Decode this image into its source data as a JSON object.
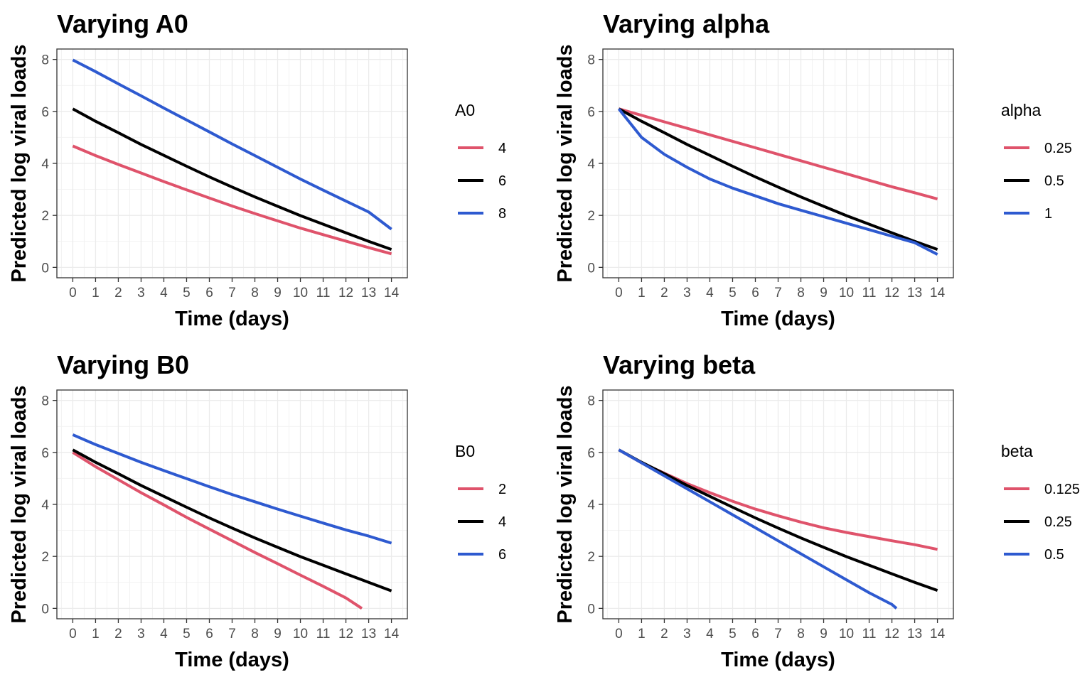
{
  "chart_data": [
    {
      "type": "line",
      "title": "Varying A0",
      "xlabel": "Time (days)",
      "ylabel": "Predicted log viral loads",
      "xlim": [
        0,
        14
      ],
      "ylim": [
        0,
        8
      ],
      "xticks": [
        "0",
        "1",
        "2",
        "3",
        "4",
        "5",
        "6",
        "7",
        "8",
        "9",
        "10",
        "11",
        "12",
        "13",
        "14"
      ],
      "yticks": [
        "0",
        "2",
        "4",
        "6",
        "8"
      ],
      "grid": true,
      "legend": {
        "title": "A0",
        "placement": "right"
      },
      "x": [
        0,
        1,
        2,
        3,
        4,
        5,
        6,
        7,
        8,
        9,
        10,
        11,
        12,
        13,
        14
      ],
      "series": [
        {
          "name": "4",
          "color": "#DF536B",
          "values": [
            4.67,
            4.3,
            3.96,
            3.63,
            3.3,
            2.98,
            2.67,
            2.36,
            2.07,
            1.79,
            1.51,
            1.26,
            1.01,
            0.76,
            0.52
          ]
        },
        {
          "name": "6",
          "color": "#000000",
          "values": [
            6.1,
            5.62,
            5.18,
            4.73,
            4.31,
            3.89,
            3.48,
            3.09,
            2.71,
            2.35,
            1.99,
            1.66,
            1.33,
            1.0,
            0.69
          ]
        },
        {
          "name": "8",
          "color": "#2E5AD0",
          "values": [
            7.98,
            7.53,
            7.06,
            6.6,
            6.13,
            5.67,
            5.21,
            4.75,
            4.3,
            3.85,
            3.4,
            2.97,
            2.55,
            2.13,
            1.47
          ]
        }
      ]
    },
    {
      "type": "line",
      "title": "Varying alpha",
      "xlabel": "Time (days)",
      "ylabel": "Predicted log viral loads",
      "xlim": [
        0,
        14
      ],
      "ylim": [
        0,
        8
      ],
      "xticks": [
        "0",
        "1",
        "2",
        "3",
        "4",
        "5",
        "6",
        "7",
        "8",
        "9",
        "10",
        "11",
        "12",
        "13",
        "14"
      ],
      "yticks": [
        "0",
        "2",
        "4",
        "6",
        "8"
      ],
      "grid": true,
      "legend": {
        "title": "alpha",
        "placement": "right"
      },
      "x": [
        0,
        1,
        2,
        3,
        4,
        5,
        6,
        7,
        8,
        9,
        10,
        11,
        12,
        13,
        14
      ],
      "series": [
        {
          "name": "0.25",
          "color": "#DF536B",
          "values": [
            6.1,
            5.85,
            5.6,
            5.35,
            5.1,
            4.85,
            4.6,
            4.35,
            4.1,
            3.85,
            3.6,
            3.35,
            3.1,
            2.87,
            2.63
          ]
        },
        {
          "name": "0.5",
          "color": "#000000",
          "values": [
            6.1,
            5.62,
            5.18,
            4.73,
            4.31,
            3.89,
            3.48,
            3.09,
            2.71,
            2.35,
            1.99,
            1.66,
            1.33,
            1.0,
            0.69
          ]
        },
        {
          "name": "1",
          "color": "#2E5AD0",
          "values": [
            6.1,
            5.0,
            4.35,
            3.85,
            3.4,
            3.05,
            2.75,
            2.45,
            2.2,
            1.95,
            1.7,
            1.45,
            1.2,
            0.95,
            0.5
          ]
        }
      ]
    },
    {
      "type": "line",
      "title": "Varying B0",
      "xlabel": "Time (days)",
      "ylabel": "Predicted log viral loads",
      "xlim": [
        0,
        14
      ],
      "ylim": [
        0,
        8
      ],
      "xticks": [
        "0",
        "1",
        "2",
        "3",
        "4",
        "5",
        "6",
        "7",
        "8",
        "9",
        "10",
        "11",
        "12",
        "13",
        "14"
      ],
      "yticks": [
        "0",
        "2",
        "4",
        "6",
        "8"
      ],
      "grid": true,
      "legend": {
        "title": "B0",
        "placement": "right"
      },
      "x": [
        0,
        1,
        2,
        3,
        4,
        5,
        6,
        7,
        8,
        9,
        10,
        11,
        12,
        12.7
      ],
      "series": [
        {
          "name": "2",
          "color": "#DF536B",
          "values": [
            6.0,
            5.45,
            4.95,
            4.45,
            3.98,
            3.5,
            3.05,
            2.6,
            2.15,
            1.72,
            1.28,
            0.85,
            0.4,
            0.0
          ]
        },
        {
          "name": "4",
          "color": "#000000",
          "x": [
            0,
            1,
            2,
            3,
            4,
            5,
            6,
            7,
            8,
            9,
            10,
            11,
            12,
            13,
            14
          ],
          "values": [
            6.1,
            5.62,
            5.18,
            4.73,
            4.31,
            3.89,
            3.48,
            3.09,
            2.71,
            2.35,
            1.99,
            1.66,
            1.33,
            1.0,
            0.67
          ]
        },
        {
          "name": "6",
          "color": "#2E5AD0",
          "x": [
            0,
            1,
            2,
            3,
            4,
            5,
            6,
            7,
            8,
            9,
            10,
            11,
            12,
            13,
            14
          ],
          "values": [
            6.68,
            6.3,
            5.96,
            5.62,
            5.3,
            4.99,
            4.68,
            4.38,
            4.1,
            3.82,
            3.55,
            3.28,
            3.02,
            2.78,
            2.51
          ]
        }
      ]
    },
    {
      "type": "line",
      "title": "Varying beta",
      "xlabel": "Time (days)",
      "ylabel": "Predicted log viral loads",
      "xlim": [
        0,
        14
      ],
      "ylim": [
        0,
        8
      ],
      "xticks": [
        "0",
        "1",
        "2",
        "3",
        "4",
        "5",
        "6",
        "7",
        "8",
        "9",
        "10",
        "11",
        "12",
        "13",
        "14"
      ],
      "yticks": [
        "0",
        "2",
        "4",
        "6",
        "8"
      ],
      "grid": true,
      "legend": {
        "title": "beta",
        "placement": "right"
      },
      "x": [
        0,
        1,
        2,
        3,
        4,
        5,
        6,
        7,
        8,
        9,
        10,
        11,
        12,
        13,
        14
      ],
      "series": [
        {
          "name": "0.125",
          "color": "#DF536B",
          "values": [
            6.1,
            5.6,
            5.2,
            4.8,
            4.45,
            4.12,
            3.82,
            3.56,
            3.32,
            3.1,
            2.92,
            2.76,
            2.6,
            2.45,
            2.27
          ]
        },
        {
          "name": "0.25",
          "color": "#000000",
          "values": [
            6.1,
            5.62,
            5.18,
            4.73,
            4.31,
            3.89,
            3.48,
            3.09,
            2.71,
            2.35,
            1.99,
            1.66,
            1.33,
            1.0,
            0.69
          ]
        },
        {
          "name": "0.5",
          "color": "#2E5AD0",
          "x": [
            0,
            1,
            2,
            3,
            4,
            5,
            6,
            7,
            8,
            9,
            10,
            11,
            12,
            12.2
          ],
          "values": [
            6.1,
            5.6,
            5.1,
            4.6,
            4.1,
            3.6,
            3.1,
            2.6,
            2.1,
            1.6,
            1.1,
            0.6,
            0.15,
            0.0
          ]
        }
      ]
    }
  ]
}
